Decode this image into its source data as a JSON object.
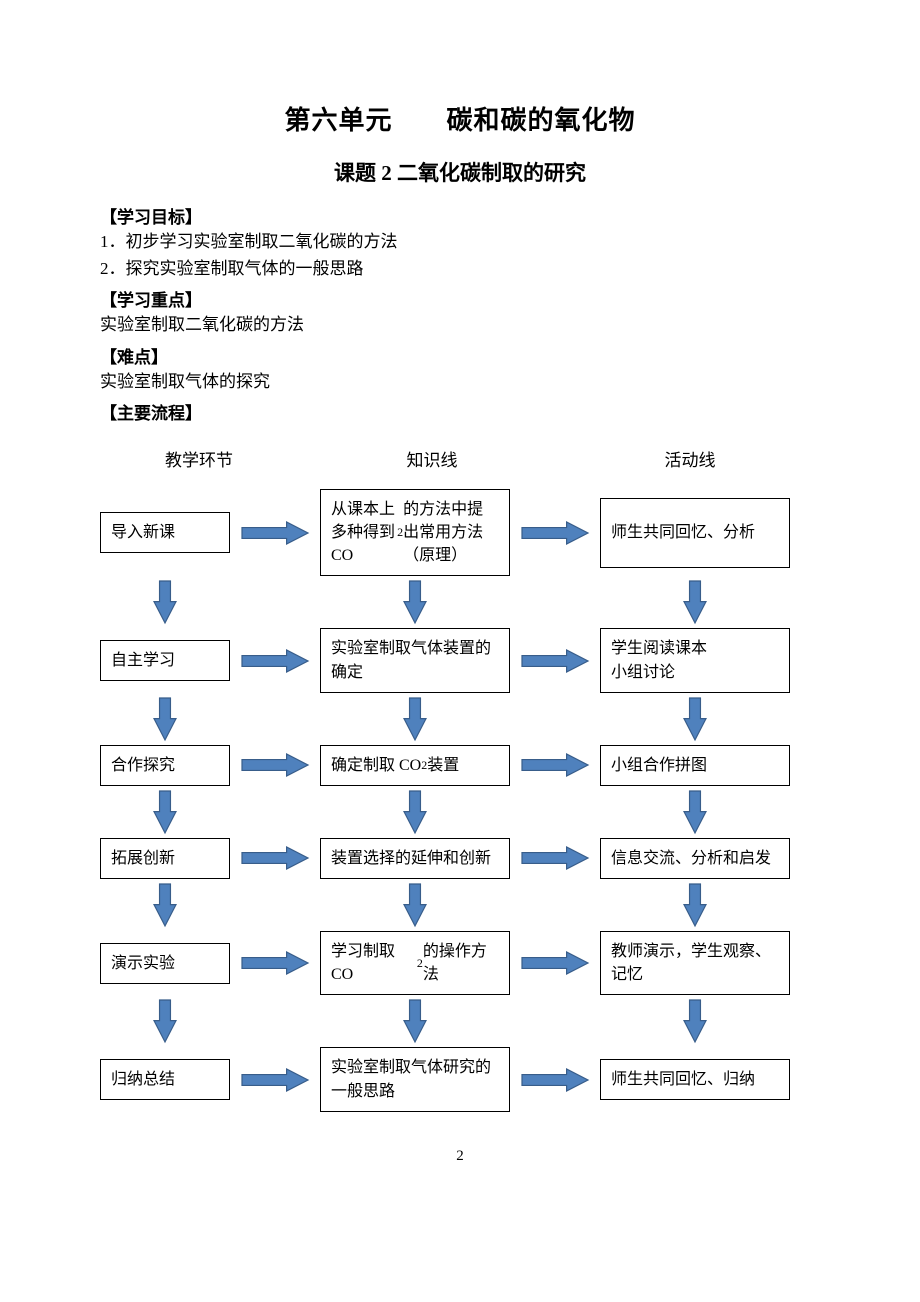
{
  "colors": {
    "arrow_fill": "#4f81bd",
    "arrow_stroke": "#385d8a",
    "node_border": "#000000",
    "text": "#000000",
    "background": "#ffffff"
  },
  "unit_title": "第六单元　　碳和碳的氧化物",
  "lesson_title": "课题 2  二氧化碳制取的研究",
  "sections": {
    "objectives_head": "【学习目标】",
    "obj1": "1．初步学习实验室制取二氧化碳的方法",
    "obj2": "2．探究实验室制取气体的一般思路",
    "keypoint_head": "【学习重点】",
    "keypoint_body": "实验室制取二氧化碳的方法",
    "difficult_head": "【难点】",
    "difficult_body": "实验室制取气体的探究",
    "flow_head": "【主要流程】"
  },
  "columns": {
    "c1": "教学环节",
    "c2": "知识线",
    "c3": "活动线"
  },
  "flow": {
    "rows": [
      {
        "left": "导入新课",
        "mid_html": "从课本上多种得到 CO<sub class='sub'>2</sub> 的方法中提出常用方法（原理）",
        "right": "师生共同回忆、分析",
        "tall": true
      },
      {
        "left": "自主学习",
        "mid_html": "实验室制取气体装置的确定",
        "right": "学生阅读课本<br>小组讨论",
        "tall": false
      },
      {
        "left": "合作探究",
        "mid_html": "确定制取 CO<sub class='sub'>2</sub> 装置",
        "right": "小组合作拼图",
        "tall": false
      },
      {
        "left": "拓展创新",
        "mid_html": "装置选择的延伸和创新",
        "right": "信息交流、分析和启发",
        "tall": false
      },
      {
        "left": "演示实验",
        "mid_html": "学习制取 CO<sub class='sub'>2</sub> 的操作方法",
        "right": "教师演示，学生观察、记忆",
        "tall": false
      },
      {
        "left": "归纳总结",
        "mid_html": "实验室制取气体研究的一般思路",
        "right": "师生共同回忆、归纳",
        "tall": false
      }
    ]
  },
  "page_number": "2"
}
